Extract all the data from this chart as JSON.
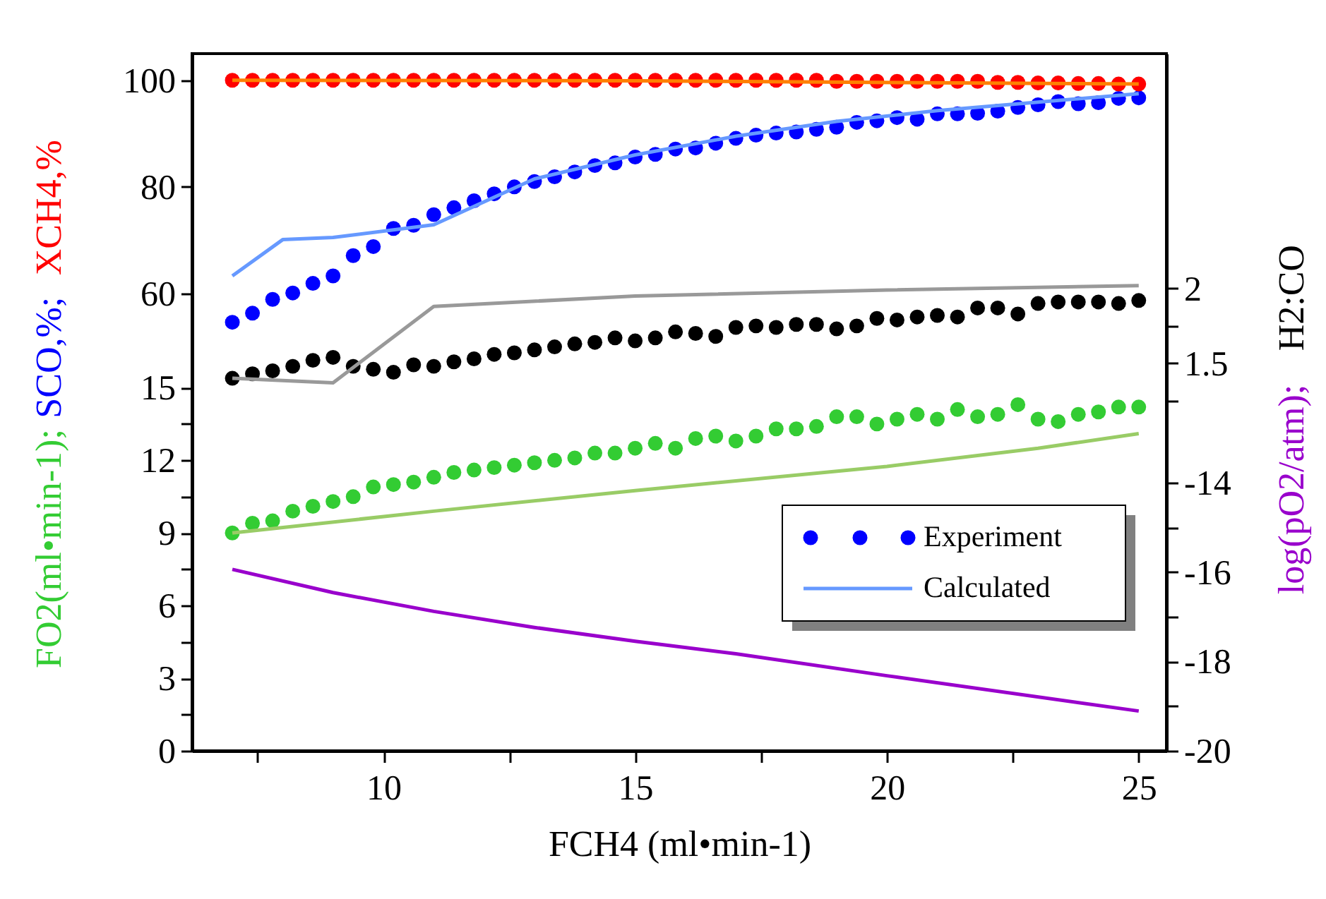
{
  "chart_data": [
    {
      "type": "scatter",
      "ylabel": "SCO,%; XCH4,%",
      "y2label": "H2:CO",
      "marker": "circle",
      "legend": "right",
      "tick_labels": "y",
      "xlim": [
        6.2,
        25.55
      ],
      "ylim": [
        -25.8,
        105
      ],
      "yticks": [
        60,
        80,
        100
      ],
      "y2lim": [
        -1.09,
        3.57
      ],
      "y2ticks": [
        {
          "value": 1.25,
          "label": null
        },
        1.5,
        {
          "value": 1.75,
          "label": null
        },
        2
      ],
      "x": [
        7,
        7.4,
        7.8,
        8.2,
        8.6,
        9,
        9.4,
        9.8,
        10.2,
        10.6,
        11,
        11.4,
        11.8,
        12.2,
        12.6,
        13,
        13.4,
        13.8,
        14.2,
        14.6,
        15,
        15.4,
        15.8,
        16.2,
        16.6,
        17,
        17.4,
        17.8,
        18.2,
        18.6,
        19,
        19.4,
        19.8,
        20.2,
        20.6,
        21,
        21.4,
        21.8,
        22.2,
        22.6,
        23,
        23.4,
        23.8,
        24.2,
        24.6,
        25
      ],
      "series": [
        {
          "name": "Experiment",
          "color": "#0000ff",
          "values": [
            54.6,
            56.3,
            58.9,
            60.1,
            61.9,
            63.3,
            67.1,
            68.8,
            72.2,
            72.8,
            74.8,
            76.1,
            77.4,
            78.7,
            80.0,
            81.0,
            81.9,
            82.8,
            84.0,
            84.5,
            85.6,
            86.1,
            87.1,
            87.3,
            88.2,
            89.1,
            89.7,
            90.1,
            90.3,
            90.8,
            91.2,
            92.1,
            92.4,
            93.0,
            92.7,
            93.7,
            93.7,
            93.8,
            94.2,
            94.9,
            95.4,
            96.0,
            95.6,
            95.8,
            96.6,
            96.7
          ]
        },
        {
          "color": "#ff0000",
          "values": [
            100,
            100,
            100,
            100,
            100,
            100,
            100,
            100,
            100,
            100,
            100,
            100,
            100,
            100,
            100,
            100,
            100,
            100,
            100,
            100,
            100,
            100,
            100,
            100,
            100,
            100,
            100,
            100,
            100,
            100,
            99.8,
            99.8,
            99.8,
            99.8,
            99.8,
            99.8,
            99.8,
            99.8,
            99.6,
            99.6,
            99.5,
            99.5,
            99.4,
            99.4,
            99.3,
            99.3
          ]
        },
        {
          "axis": "y2",
          "color": "#000000",
          "values": [
            1.4,
            1.43,
            1.45,
            1.48,
            1.52,
            1.54,
            1.48,
            1.46,
            1.44,
            1.49,
            1.48,
            1.51,
            1.53,
            1.56,
            1.57,
            1.59,
            1.61,
            1.63,
            1.64,
            1.67,
            1.65,
            1.67,
            1.71,
            1.7,
            1.68,
            1.74,
            1.75,
            1.74,
            1.76,
            1.76,
            1.73,
            1.75,
            1.8,
            1.79,
            1.81,
            1.82,
            1.81,
            1.87,
            1.87,
            1.83,
            1.9,
            1.91,
            1.91,
            1.91,
            1.9,
            1.92
          ]
        },
        {
          "type": "line",
          "marker": "none",
          "name": "Calculated",
          "color": "#6699ff",
          "x": [
            7,
            8,
            9,
            11,
            13,
            15,
            17,
            19,
            21,
            23,
            25
          ],
          "values": [
            63.3,
            70.1,
            70.5,
            72.9,
            81.5,
            86.0,
            89.5,
            92.3,
            94.3,
            95.9,
            97.5
          ]
        },
        {
          "type": "line",
          "marker": "none",
          "color": "#ff8000",
          "x": [
            7,
            15,
            25
          ],
          "values": [
            100,
            99.9,
            99.3
          ]
        },
        {
          "type": "line",
          "marker": "none",
          "axis": "y2",
          "color": "#999999",
          "x": [
            7,
            9,
            11,
            15,
            20,
            25
          ],
          "values": [
            1.4,
            1.37,
            1.88,
            1.95,
            1.99,
            2.02
          ]
        }
      ]
    },
    {
      "type": "scatter",
      "xlabel": "FCH4 (ml•min-1)",
      "ylabel": "FO2(ml•min-1);",
      "y2label": "log(pO2/atm);",
      "marker": "circle",
      "xlim": [
        6.2,
        25.55
      ],
      "xticks": [
        {
          "value": 7.5,
          "label": null
        },
        10,
        {
          "value": 12.5,
          "label": null
        },
        15,
        {
          "value": 17.5,
          "label": null
        },
        20,
        {
          "value": 22.5,
          "label": null
        },
        25
      ],
      "ylim": [
        0,
        28.8
      ],
      "yticks": [
        0,
        {
          "value": 1.5,
          "label": null
        },
        3,
        {
          "value": 4.5,
          "label": null
        },
        6,
        {
          "value": 7.5,
          "label": null
        },
        9,
        {
          "value": 10.5,
          "label": null
        },
        12,
        {
          "value": 13.5,
          "label": null
        },
        15
      ],
      "y2lim": [
        -20,
        -4.4
      ],
      "y2ticks": [
        -20,
        {
          "value": -19,
          "label": null
        },
        -18,
        {
          "value": -17,
          "label": null
        },
        -16,
        {
          "value": -15,
          "label": null
        },
        -14
      ],
      "x": [
        7,
        7.4,
        7.8,
        8.2,
        8.6,
        9,
        9.4,
        9.8,
        10.2,
        10.6,
        11,
        11.4,
        11.8,
        12.2,
        12.6,
        13,
        13.4,
        13.8,
        14.2,
        14.6,
        15,
        15.4,
        15.8,
        16.2,
        16.6,
        17,
        17.4,
        17.8,
        18.2,
        18.6,
        19,
        19.4,
        19.8,
        20.2,
        20.6,
        21,
        21.4,
        21.8,
        22.2,
        22.6,
        23,
        23.4,
        23.8,
        24.2,
        24.6,
        25
      ],
      "series": [
        {
          "color": "#33cc33",
          "values": [
            9.0,
            9.4,
            9.5,
            9.9,
            10.1,
            10.3,
            10.5,
            10.9,
            11.0,
            11.1,
            11.3,
            11.5,
            11.6,
            11.7,
            11.8,
            11.9,
            12.0,
            12.1,
            12.3,
            12.3,
            12.5,
            12.7,
            12.5,
            12.9,
            13.0,
            12.8,
            13.0,
            13.3,
            13.3,
            13.4,
            13.8,
            13.8,
            13.5,
            13.7,
            13.9,
            13.7,
            14.1,
            13.8,
            13.9,
            14.3,
            13.7,
            13.6,
            13.9,
            14.0,
            14.2,
            14.2
          ]
        },
        {
          "type": "line",
          "marker": "none",
          "axis": "y2",
          "color": "#9900cc",
          "x": [
            7,
            9,
            11,
            13,
            15,
            17,
            20,
            25
          ],
          "values": [
            -15.94,
            -16.46,
            -16.88,
            -17.24,
            -17.55,
            -17.83,
            -18.32,
            -19.11
          ]
        },
        {
          "type": "line",
          "marker": "none",
          "color": "#99cc66",
          "x": [
            7,
            11,
            15,
            20,
            23,
            25
          ],
          "values": [
            9.0,
            9.9,
            10.75,
            11.75,
            12.5,
            13.1
          ]
        }
      ]
    }
  ]
}
